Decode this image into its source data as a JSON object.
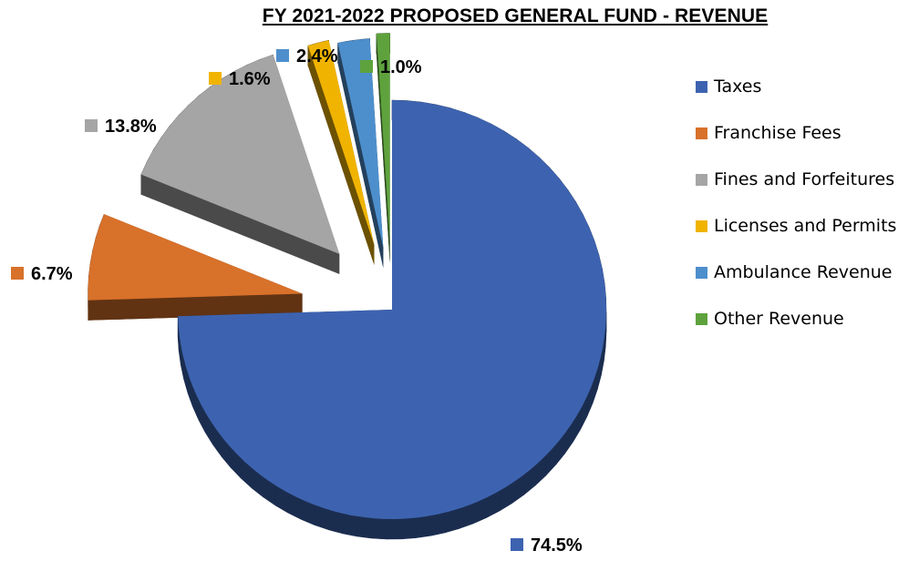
{
  "chart_data": {
    "type": "pie",
    "title": "FY 2021-2022 PROPOSED GENERAL FUND - REVENUE",
    "three_d": true,
    "exploded": true,
    "legend_position": "right",
    "slices": [
      {
        "name": "Taxes",
        "value": 74.5,
        "label": "74.5%",
        "color": "#3d63b0"
      },
      {
        "name": "Franchise Fees",
        "value": 6.7,
        "label": "6.7%",
        "color": "#d8712a"
      },
      {
        "name": "Fines and Forfeitures",
        "value": 13.8,
        "label": "13.8%",
        "color": "#a5a5a5"
      },
      {
        "name": "Licenses and Permits",
        "value": 1.6,
        "label": "1.6%",
        "color": "#f0b400"
      },
      {
        "name": "Ambulance Revenue",
        "value": 2.4,
        "label": "2.4%",
        "color": "#4d8fcc"
      },
      {
        "name": "Other Revenue",
        "value": 1.0,
        "label": "1.0%",
        "color": "#5ea23d"
      }
    ]
  }
}
